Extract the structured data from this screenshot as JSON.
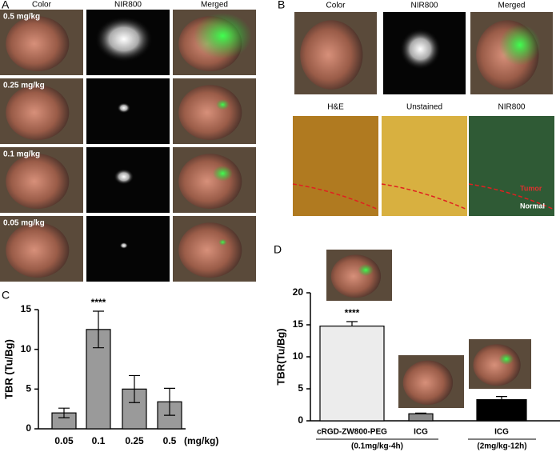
{
  "panel_a": {
    "label": "A",
    "columns": [
      "Color",
      "NIR800",
      "Merged"
    ],
    "rows": [
      "0.5 mg/kg",
      "0.25 mg/kg",
      "0.1 mg/kg",
      "0.05 mg/kg"
    ]
  },
  "panel_b": {
    "label": "B",
    "top_columns": [
      "Color",
      "NIR800",
      "Merged"
    ],
    "bottom_columns": [
      "H&E",
      "Unstained",
      "NIR800"
    ],
    "annotations": [
      "Tumor",
      "Normal"
    ]
  },
  "chart_data": [
    {
      "label": "C",
      "type": "bar",
      "ylabel": "TBR (Tu/Bg)",
      "x_unit": "(mg/kg)",
      "categories": [
        "0.05",
        "0.1",
        "0.25",
        "0.5"
      ],
      "values": [
        2.0,
        12.5,
        5.0,
        3.4
      ],
      "errors": [
        0.6,
        2.3,
        1.7,
        1.7
      ],
      "colors": [
        "#9a9a9a",
        "#9a9a9a",
        "#9a9a9a",
        "#9a9a9a"
      ],
      "annotation": "****",
      "ylim": [
        0,
        15
      ],
      "yticks": [
        0,
        5,
        10,
        15
      ]
    },
    {
      "label": "D",
      "type": "bar",
      "ylabel": "TBR(Tu/Bg)",
      "categories": [
        "cRGD-ZW800-PEG",
        "ICG",
        "ICG"
      ],
      "values": [
        14.8,
        1.1,
        3.3
      ],
      "errors": [
        0.7,
        0.1,
        0.5
      ],
      "colors": [
        "#ececec",
        "#8c8c8c",
        "#000000"
      ],
      "annotation": "****",
      "groups": [
        "(0.1mg/kg-4h)",
        "(2mg/kg-12h)"
      ],
      "ylim": [
        0,
        20
      ],
      "yticks": [
        0,
        5,
        10,
        15,
        20
      ]
    }
  ]
}
